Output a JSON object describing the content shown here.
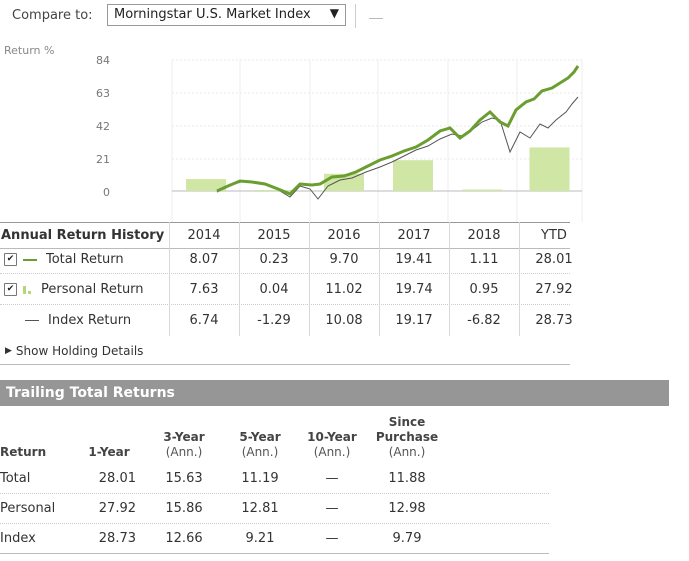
{
  "compare": {
    "label": "Compare to:",
    "selected": "Morningstar U.S. Market Index",
    "arrow": "▼"
  },
  "chart": {
    "ylabel": "Return %",
    "yticks": [
      "84",
      "63",
      "42",
      "21",
      "0"
    ],
    "colors": {
      "total": "#6a9e2f",
      "personal_bar": "#cfe6a4",
      "index": "#555555"
    },
    "annual_bars": [
      7.63,
      0.04,
      11.02,
      19.74,
      0.95,
      27.92
    ]
  },
  "annual": {
    "title": "Annual Return History",
    "years": [
      "2014",
      "2015",
      "2016",
      "2017",
      "2018",
      "YTD"
    ],
    "rows": [
      {
        "label": "Total Return",
        "values": [
          "8.07",
          "0.23",
          "9.70",
          "19.41",
          "1.11",
          "28.01"
        ]
      },
      {
        "label": "Personal Return",
        "values": [
          "7.63",
          "0.04",
          "11.02",
          "19.74",
          "0.95",
          "27.92"
        ]
      },
      {
        "label": "Index Return",
        "values": [
          "6.74",
          "-1.29",
          "10.08",
          "19.17",
          "-6.82",
          "28.73"
        ]
      }
    ],
    "checkmark": "✔",
    "show_holding": "Show Holding Details",
    "expand_icon": "▶"
  },
  "trailing": {
    "title": "Trailing Total Returns",
    "headers": {
      "return": "Return",
      "one_year": "1-Year",
      "three_year": "3-Year",
      "five_year": "5-Year",
      "ten_year": "10-Year",
      "since": "Since",
      "purchase": "Purchase",
      "ann": "(Ann.)"
    },
    "rows": [
      {
        "label": "Total",
        "values": [
          "28.01",
          "15.63",
          "11.19",
          "—",
          "11.88"
        ]
      },
      {
        "label": "Personal",
        "values": [
          "27.92",
          "15.86",
          "12.81",
          "—",
          "12.98"
        ]
      },
      {
        "label": "Index",
        "values": [
          "28.73",
          "12.66",
          "9.21",
          "—",
          "9.79"
        ]
      }
    ]
  }
}
